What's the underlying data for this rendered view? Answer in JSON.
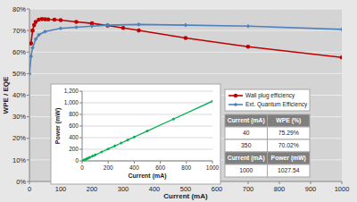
{
  "chart_data": [
    {
      "type": "line",
      "x_label": "Current (mA)",
      "y_label": "WPE / EQE",
      "xlim": [
        0,
        1000
      ],
      "xticks": [
        0,
        100,
        200,
        300,
        400,
        500,
        600,
        700,
        800,
        900,
        1000
      ],
      "ylim": [
        0,
        80
      ],
      "yticks": [
        {
          "value": 0,
          "label": "0%"
        },
        {
          "value": 10,
          "label": "10%"
        },
        {
          "value": 20,
          "label": "20%"
        },
        {
          "value": 30,
          "label": "30%"
        },
        {
          "value": 40,
          "label": "40%"
        },
        {
          "value": 50,
          "label": "50%"
        },
        {
          "value": 60,
          "label": "60%"
        },
        {
          "value": 70,
          "label": "70%"
        },
        {
          "value": 80,
          "label": "80%"
        }
      ],
      "grid": true,
      "legend": "right",
      "series": [
        {
          "name": "Wall plug efficiency",
          "color": "#c00000",
          "marker": "circle",
          "x": [
            5,
            10,
            15,
            20,
            30,
            40,
            50,
            60,
            80,
            100,
            150,
            200,
            250,
            300,
            350,
            500,
            700,
            1000
          ],
          "values": [
            64,
            70,
            72.5,
            74,
            75,
            75.29,
            75.2,
            75.1,
            75,
            74.8,
            74,
            73.3,
            72.3,
            71.2,
            70.02,
            66.5,
            62.5,
            57.5
          ]
        },
        {
          "name": "Ext. Quantum Efficiency",
          "color": "#4f81bd",
          "marker": "diamond",
          "x": [
            0,
            5,
            10,
            20,
            30,
            50,
            100,
            150,
            200,
            250,
            350,
            500,
            700,
            1000
          ],
          "values": [
            50,
            58,
            62,
            66,
            68,
            69.5,
            71,
            71.5,
            72,
            72.5,
            72.8,
            72.5,
            72,
            70.5
          ]
        }
      ]
    },
    {
      "type": "line",
      "x_label": "Current (mA)",
      "y_label": "Power (mW)",
      "xlim": [
        0,
        1000
      ],
      "xticks": [
        0,
        200,
        400,
        600,
        800,
        1000
      ],
      "ylim": [
        0,
        1200
      ],
      "yticks": [
        0,
        200,
        400,
        600,
        800,
        {
          "value": 1000,
          "label": "1,000"
        },
        {
          "value": 1200,
          "label": "1,200"
        }
      ],
      "grid": true,
      "series": [
        {
          "name": "Power",
          "color": "#00b050",
          "marker": "diamond",
          "x": [
            10,
            20,
            30,
            40,
            50,
            60,
            80,
            100,
            150,
            200,
            250,
            300,
            350,
            400,
            500,
            700,
            1000
          ],
          "values": [
            10,
            20,
            30,
            40,
            51,
            61,
            82,
            102,
            154,
            205,
            257,
            308,
            360,
            411,
            514,
            719,
            1027.54
          ]
        }
      ]
    }
  ],
  "table": {
    "sections": [
      {
        "header": [
          "Current (mA)",
          "WPE (%)"
        ],
        "rows": [
          [
            "40",
            "75.29%"
          ],
          [
            "350",
            "70.02%"
          ]
        ]
      },
      {
        "header": [
          "Current (mA)",
          "Power (mW)"
        ],
        "rows": [
          [
            "1000",
            "1027.54"
          ]
        ]
      }
    ]
  }
}
